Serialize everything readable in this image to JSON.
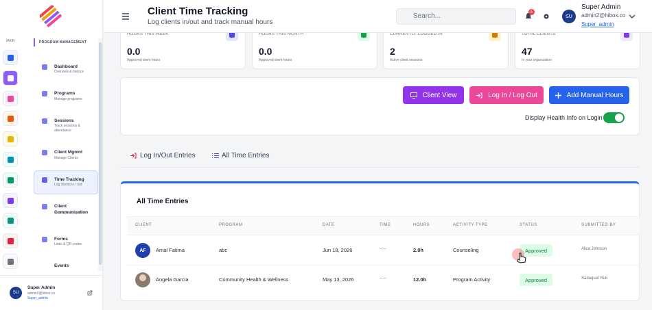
{
  "header": {
    "title": "Client Time Tracking",
    "subtitle": "Log clients in/out and track manual hours",
    "search_placeholder": "Search...",
    "notification_count": "5",
    "user": {
      "initials": "SU",
      "name": "Super Admin",
      "email": "admin2@hibox.co",
      "username": "Super_admin"
    }
  },
  "sidebar": {
    "rail_label": "MAIN",
    "section": "PROGRAM MANAGEMENT",
    "items": [
      {
        "label": "Dashboard",
        "desc": "Overview & metrics"
      },
      {
        "label": "Programs",
        "desc": "Manage programs"
      },
      {
        "label": "Sessions",
        "desc": "Track sessions & attendance"
      },
      {
        "label": "Client Mgmnt",
        "desc": "Manage Clients"
      },
      {
        "label": "Time Tracking",
        "desc": "Log clients in / out"
      },
      {
        "label": "Client Communication",
        "desc": "Messages & updates"
      },
      {
        "label": "Forms",
        "desc": "Links & QR codes"
      },
      {
        "label": "Events"
      }
    ],
    "footer": {
      "initials": "SU",
      "name": "Super Admin",
      "email": "admin2@hibox.co",
      "username": "Super_admin"
    }
  },
  "stats": [
    {
      "label": "HOURS THIS WEEK",
      "value": "0.0",
      "desc": "Approved client hours"
    },
    {
      "label": "HOURS THIS MONTH",
      "value": "0.0",
      "desc": "Approved client hours"
    },
    {
      "label": "CURRENTLY LOGGED IN",
      "value": "2",
      "desc": "Active client sessions"
    },
    {
      "label": "TOTAL CLIENTS",
      "value": "47",
      "desc": "In your organization"
    }
  ],
  "actions": {
    "buttons": [
      "Client View",
      "Log In / Log Out",
      "Add Manual Hours"
    ],
    "toggle_label": "Display Health Info on Login"
  },
  "tabs": [
    "Log In/Out Entries",
    "All Time Entries"
  ],
  "table": {
    "title": "All Time Entries",
    "headers": [
      "CLIENT",
      "PROGRAM",
      "DATE",
      "TIME",
      "HOURS",
      "ACTIVITY TYPE",
      "STATUS",
      "SUBMITTED BY"
    ],
    "rows": [
      {
        "initials": "AF",
        "client": "Amal Fatima",
        "program": "abc",
        "date": "Jun 18, 2026",
        "time": "--:--",
        "hours": "2.0h",
        "activity": "Counseling",
        "status": "Approved",
        "submitted_by": "Alice Johnson"
      },
      {
        "client": "Angela Garcia",
        "program": "Community Health & Wellness",
        "date": "May 13, 2026",
        "time": "--:--",
        "hours": "12.0h",
        "activity": "Program Activity",
        "status": "Approved",
        "submitted_by": "Sadaquat Ruk"
      }
    ]
  }
}
